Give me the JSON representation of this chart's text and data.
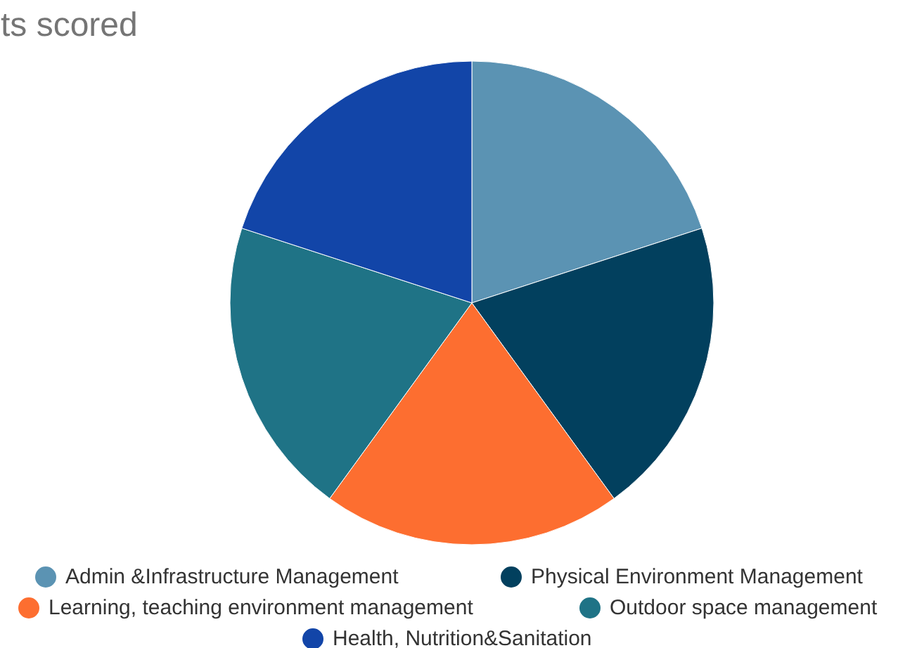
{
  "chart_data": {
    "type": "pie",
    "title": "ts scored",
    "categories": [
      "Admin &Infrastructure Management",
      "Physical Environment Management",
      "Learning, teaching environment management",
      "Outdoor space management",
      "Health, Nutrition&Sanitation"
    ],
    "values": [
      20,
      20,
      20,
      20,
      20
    ],
    "colors": [
      "#5b93b3",
      "#02405e",
      "#fd6e30",
      "#1f7386",
      "#1245a8"
    ],
    "legend": "bottom"
  }
}
